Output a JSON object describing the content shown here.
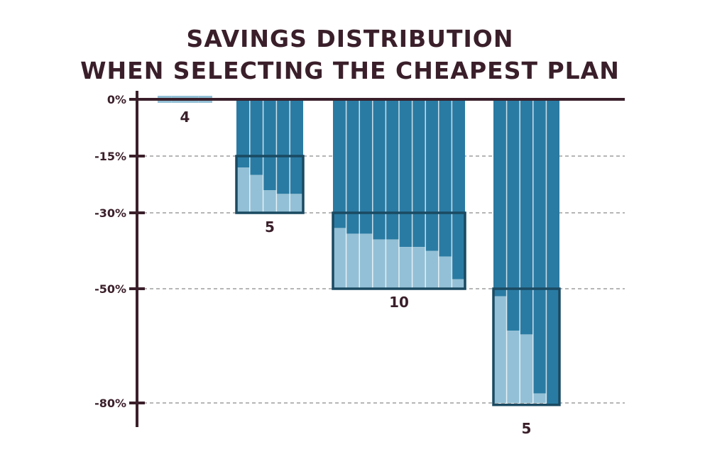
{
  "title_lines": [
    "Savings Distribution",
    "When Selecting the Cheapest Plan"
  ],
  "colors": {
    "dark_bar": "#2a7ba3",
    "light_bar": "#93c0d6",
    "frame": "#1a4a62",
    "axis": "#3a1f2a",
    "text": "#3a1f2a",
    "grid": "#8a8a8a"
  },
  "chart_data": {
    "type": "bar",
    "title": "Savings Distribution When Selecting the Cheapest Plan",
    "xlabel": "",
    "ylabel": "",
    "ylim": [
      -82,
      0
    ],
    "y_ticks": [
      {
        "value": 0,
        "label": "0%"
      },
      {
        "value": -15,
        "label": "-15%"
      },
      {
        "value": -30,
        "label": "-30%"
      },
      {
        "value": -50,
        "label": "-50%"
      },
      {
        "value": -80,
        "label": "-80%"
      }
    ],
    "grid": "dashed horizontal lines at -15%, -30%, -50%, -80%",
    "groups": [
      {
        "range": [
          0,
          0
        ],
        "count_label": "4",
        "values": [
          -1,
          -1,
          -1,
          -1
        ]
      },
      {
        "range": [
          -15,
          -30
        ],
        "count_label": "5",
        "values": [
          -18,
          -20,
          -24,
          -25,
          -25
        ]
      },
      {
        "range": [
          -30,
          -50
        ],
        "count_label": "10",
        "values": [
          -34,
          -35.5,
          -35.5,
          -37,
          -37,
          -39,
          -39,
          -40,
          -41.5,
          -47.5
        ]
      },
      {
        "range": [
          -50,
          -80
        ],
        "count_label": "5",
        "values": [
          -52,
          -61,
          -62,
          -77.5,
          -80.5
        ]
      }
    ]
  }
}
